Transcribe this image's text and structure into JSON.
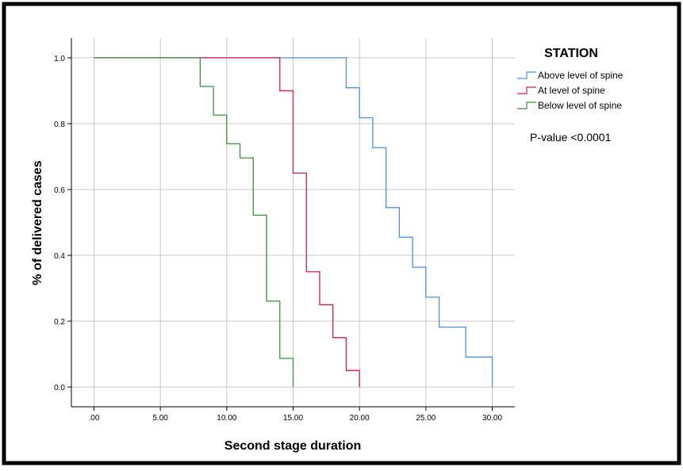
{
  "chart_data": {
    "type": "line",
    "subtype": "kaplan-meier step",
    "xlabel": "Second stage duration",
    "ylabel": "% of delivered cases",
    "xlim": [
      -1.7,
      31.7
    ],
    "ylim": [
      -0.06,
      1.06
    ],
    "xticks": [
      0,
      5,
      10,
      15,
      20,
      25,
      30
    ],
    "xtick_labels": [
      ".00",
      "5.00",
      "10.00",
      "15.00",
      "20.00",
      "25.00",
      "30.00"
    ],
    "yticks": [
      0,
      0.2,
      0.4,
      0.6,
      0.8,
      1.0
    ],
    "ytick_labels": [
      "0.0",
      "0.2",
      "0.4",
      "0.6",
      "0.8",
      "1.0"
    ],
    "grid": true,
    "legend": {
      "title": "STATION",
      "position": "right"
    },
    "annotation": "P-value <0.0001",
    "series": [
      {
        "name": "Above level of spine",
        "color": "#4a90e2",
        "steps": [
          [
            0,
            1.0
          ],
          [
            19,
            0.909
          ],
          [
            20,
            0.818
          ],
          [
            21,
            0.727
          ],
          [
            22,
            0.545
          ],
          [
            23,
            0.455
          ],
          [
            24,
            0.364
          ],
          [
            25,
            0.273
          ],
          [
            26,
            0.182
          ],
          [
            28,
            0.091
          ],
          [
            30,
            0.0
          ]
        ]
      },
      {
        "name": "At level of spine",
        "color": "#d81b4a",
        "steps": [
          [
            0,
            1.0
          ],
          [
            14,
            0.9
          ],
          [
            15,
            0.65
          ],
          [
            16,
            0.35
          ],
          [
            17,
            0.25
          ],
          [
            18,
            0.15
          ],
          [
            19,
            0.05
          ],
          [
            20,
            0.0
          ]
        ]
      },
      {
        "name": "Below level of spine",
        "color": "#3a8f3a",
        "steps": [
          [
            0,
            1.0
          ],
          [
            8,
            0.913
          ],
          [
            9,
            0.826
          ],
          [
            10,
            0.739
          ],
          [
            11,
            0.696
          ],
          [
            12,
            0.522
          ],
          [
            13,
            0.261
          ],
          [
            14,
            0.087
          ],
          [
            15,
            0.0
          ]
        ]
      }
    ]
  },
  "colors": {
    "border": "#000000",
    "grid": "#c8c8c8",
    "axis": "#000000"
  }
}
